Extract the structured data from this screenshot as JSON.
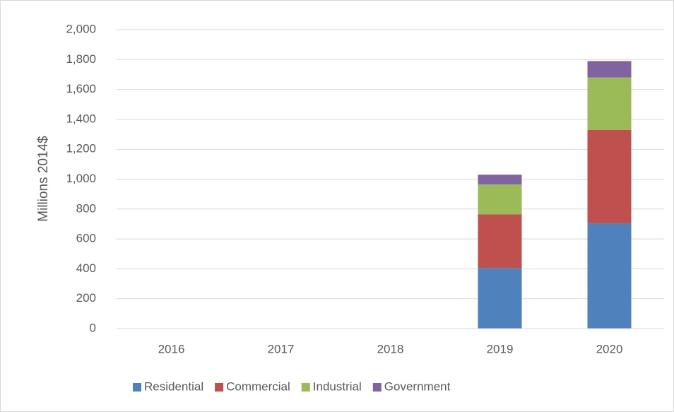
{
  "chart_data": {
    "type": "stacked_bar",
    "y_label": "Millions 2014$",
    "categories": [
      "2016",
      "2017",
      "2018",
      "2019",
      "2020"
    ],
    "series": [
      {
        "name": "Residential",
        "color": "#4f81bd",
        "values": [
          0,
          0,
          0,
          405,
          705
        ]
      },
      {
        "name": "Commercial",
        "color": "#c0504d",
        "values": [
          0,
          0,
          0,
          360,
          625
        ]
      },
      {
        "name": "Industrial",
        "color": "#9bbb59",
        "values": [
          0,
          0,
          0,
          200,
          350
        ]
      },
      {
        "name": "Government",
        "color": "#8064a2",
        "values": [
          0,
          0,
          0,
          65,
          110
        ]
      }
    ],
    "ylim": [
      0,
      2000
    ],
    "yticks": [
      0,
      200,
      400,
      600,
      800,
      {
        "value": 1000,
        "label": "1,000"
      },
      {
        "value": 1200,
        "label": "1,200"
      },
      {
        "value": 1400,
        "label": "1,400"
      },
      {
        "value": 1600,
        "label": "1,600"
      },
      {
        "value": 1800,
        "label": "1,800"
      },
      {
        "value": 2000,
        "label": "2,000"
      }
    ],
    "grid": true,
    "legend": "bottom"
  }
}
